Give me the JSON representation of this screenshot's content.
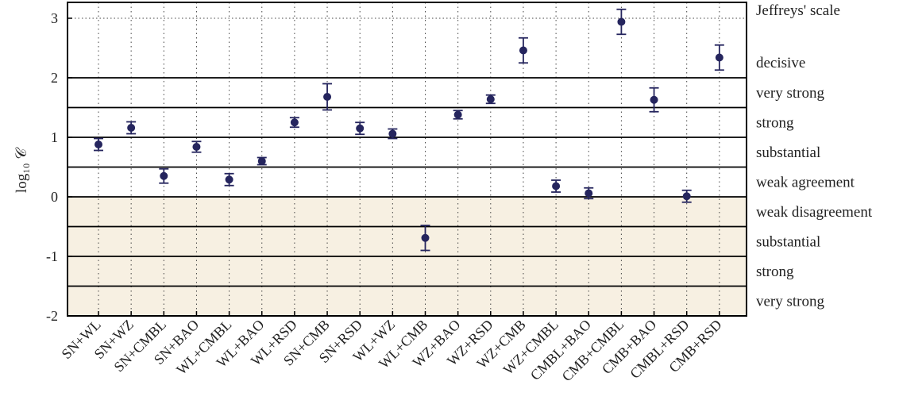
{
  "chart_data": {
    "type": "scatter",
    "title": "",
    "xlabel": "",
    "ylabel": "log₁₀ 𝒞",
    "ylim": [
      -2,
      3.3
    ],
    "yticks": [
      "3",
      "2",
      "1",
      "0",
      "-1",
      "-2"
    ],
    "grid": true,
    "categories": [
      "SN+WL",
      "SN+WZ",
      "SN+CMBL",
      "SN+BAO",
      "WL+CMBL",
      "WL+BAO",
      "WL+RSD",
      "SN+CMB",
      "SN+RSD",
      "WL+WZ",
      "WL+CMB",
      "WZ+BAO",
      "WZ+RSD",
      "WZ+CMB",
      "WZ+CMBL",
      "CMBL+BAO",
      "CMB+CMBL",
      "CMB+BAO",
      "CMBL+RSD",
      "CMB+RSD"
    ],
    "values": [
      0.88,
      1.16,
      0.35,
      0.84,
      0.29,
      0.6,
      1.25,
      1.68,
      1.15,
      1.06,
      -0.69,
      1.38,
      1.64,
      2.46,
      0.18,
      0.06,
      2.94,
      1.63,
      0.01,
      2.34
    ],
    "errors": [
      0.1,
      0.1,
      0.12,
      0.09,
      0.1,
      0.06,
      0.08,
      0.22,
      0.1,
      0.08,
      0.21,
      0.07,
      0.07,
      0.21,
      0.1,
      0.09,
      0.21,
      0.2,
      0.1,
      0.21
    ],
    "jeffreys_boundaries": [
      2,
      1.5,
      1,
      0.5,
      0,
      -0.5,
      -1,
      -1.5
    ],
    "reference_line": 3,
    "jeffreys_header": "Jeffreys' scale",
    "jeffreys_labels": [
      "decisive",
      "very strong",
      "strong",
      "substantial",
      "weak agreement",
      "weak disagreement",
      "substantial",
      "strong",
      "very strong"
    ],
    "colors": {
      "points": "#25255e",
      "disagreement_fill": "#f7f0e2",
      "lines": "#000000",
      "grid": "#444444"
    }
  }
}
